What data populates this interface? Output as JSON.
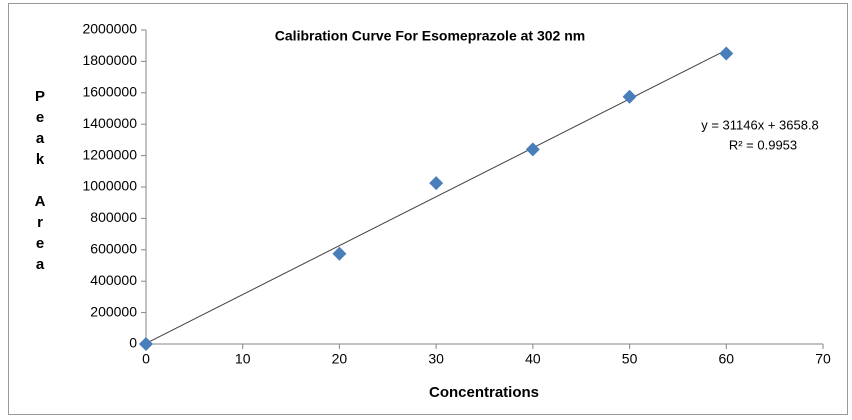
{
  "chart_data": {
    "type": "scatter",
    "title": "Calibration Curve For Esomeprazole at 302 nm",
    "x_label": "Concentrations",
    "y_label": "Peak Area",
    "series": [
      {
        "name": "Peak Area",
        "color": "#4a7ebb",
        "x": [
          0,
          20,
          30,
          40,
          50,
          60
        ],
        "values": [
          0,
          575000,
          1025000,
          1240000,
          1575000,
          1850000
        ]
      }
    ],
    "trendline": {
      "slope": 31146,
      "intercept": 3658.8,
      "color": "#404040",
      "label": "y = 31146x + 3658.8",
      "r2_label": "R² = 0.9953"
    },
    "xlim": [
      0,
      70
    ],
    "xticks": [
      0,
      10,
      20,
      30,
      40,
      50,
      60,
      70
    ],
    "ylim": [
      0,
      2000000
    ],
    "yticks": [
      0,
      200000,
      400000,
      600000,
      800000,
      1000000,
      1200000,
      1400000,
      1600000,
      1800000,
      2000000
    ],
    "grid": false,
    "legend": false
  }
}
